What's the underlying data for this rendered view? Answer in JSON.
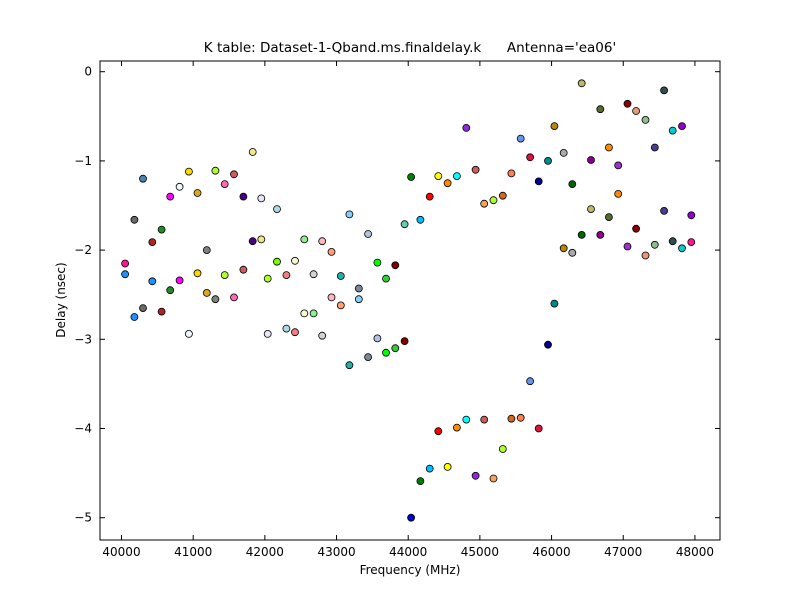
{
  "figure": {
    "background": "#ffffff"
  },
  "chart_data": {
    "type": "scatter",
    "title": "K table: Dataset-1-Qband.ms.finaldelay.k      Antenna='ea06'",
    "xlabel": "Frequency (MHz)",
    "ylabel": "Delay (nsec)",
    "xlim": [
      39700,
      48350
    ],
    "ylim": [
      -5.25,
      0.12
    ],
    "xticks": [
      40000,
      41000,
      42000,
      43000,
      44000,
      45000,
      46000,
      47000,
      48000
    ],
    "yticks": [
      0,
      -1,
      -2,
      -3,
      -4,
      -5
    ],
    "xtick_labels": [
      "40000",
      "41000",
      "42000",
      "43000",
      "44000",
      "45000",
      "46000",
      "47000",
      "48000"
    ],
    "ytick_labels": [
      "0",
      "−1",
      "−2",
      "−3",
      "−4",
      "−5"
    ],
    "grid": false,
    "legend": false,
    "marker": "circle",
    "points": [
      {
        "x": 40050,
        "y": -2.15,
        "color": "#ff1493"
      },
      {
        "x": 40050,
        "y": -2.27,
        "color": "#1e90ff"
      },
      {
        "x": 40180,
        "y": -1.66,
        "color": "#696969"
      },
      {
        "x": 40180,
        "y": -2.75,
        "color": "#1e90ff"
      },
      {
        "x": 40300,
        "y": -1.2,
        "color": "#4682b4"
      },
      {
        "x": 40300,
        "y": -2.65,
        "color": "#696969"
      },
      {
        "x": 40430,
        "y": -1.91,
        "color": "#b22222"
      },
      {
        "x": 40430,
        "y": -2.35,
        "color": "#1e90ff"
      },
      {
        "x": 40560,
        "y": -1.77,
        "color": "#228b22"
      },
      {
        "x": 40560,
        "y": -2.69,
        "color": "#b22222"
      },
      {
        "x": 40680,
        "y": -1.4,
        "color": "#ff00ff"
      },
      {
        "x": 40680,
        "y": -2.45,
        "color": "#228b22"
      },
      {
        "x": 40810,
        "y": -1.29,
        "color": "#f0f8ff"
      },
      {
        "x": 40810,
        "y": -2.34,
        "color": "#ff00ff"
      },
      {
        "x": 40940,
        "y": -1.12,
        "color": "#ffd700"
      },
      {
        "x": 40940,
        "y": -2.94,
        "color": "#f0f8ff"
      },
      {
        "x": 41060,
        "y": -1.36,
        "color": "#daa520"
      },
      {
        "x": 41060,
        "y": -2.26,
        "color": "#ffd700"
      },
      {
        "x": 41190,
        "y": -2.0,
        "color": "#808080"
      },
      {
        "x": 41190,
        "y": -2.48,
        "color": "#daa520"
      },
      {
        "x": 41310,
        "y": -1.11,
        "color": "#adff2f"
      },
      {
        "x": 41310,
        "y": -2.55,
        "color": "#808080"
      },
      {
        "x": 41440,
        "y": -1.26,
        "color": "#ff69b4"
      },
      {
        "x": 41440,
        "y": -2.28,
        "color": "#adff2f"
      },
      {
        "x": 41570,
        "y": -1.15,
        "color": "#cd5c5c"
      },
      {
        "x": 41570,
        "y": -2.53,
        "color": "#ff69b4"
      },
      {
        "x": 41700,
        "y": -1.4,
        "color": "#4b0082"
      },
      {
        "x": 41700,
        "y": -2.22,
        "color": "#cd5c5c"
      },
      {
        "x": 41830,
        "y": -0.9,
        "color": "#f0e68c"
      },
      {
        "x": 41830,
        "y": -1.9,
        "color": "#4b0082"
      },
      {
        "x": 41950,
        "y": -1.42,
        "color": "#e6e6fa"
      },
      {
        "x": 41950,
        "y": -1.88,
        "color": "#f0e68c"
      },
      {
        "x": 42040,
        "y": -2.32,
        "color": "#adff2f"
      },
      {
        "x": 42040,
        "y": -2.94,
        "color": "#e6e6fa"
      },
      {
        "x": 42170,
        "y": -1.54,
        "color": "#add8e6"
      },
      {
        "x": 42170,
        "y": -2.13,
        "color": "#7cfc00"
      },
      {
        "x": 42300,
        "y": -2.28,
        "color": "#f08080"
      },
      {
        "x": 42300,
        "y": -2.88,
        "color": "#add8e6"
      },
      {
        "x": 42420,
        "y": -2.12,
        "color": "#fafad2"
      },
      {
        "x": 42420,
        "y": -2.92,
        "color": "#f08080"
      },
      {
        "x": 42550,
        "y": -1.88,
        "color": "#90ee90"
      },
      {
        "x": 42550,
        "y": -2.71,
        "color": "#fafad2"
      },
      {
        "x": 42680,
        "y": -2.27,
        "color": "#d3d3d3"
      },
      {
        "x": 42680,
        "y": -2.71,
        "color": "#90ee90"
      },
      {
        "x": 42800,
        "y": -1.9,
        "color": "#ffb6c1"
      },
      {
        "x": 42800,
        "y": -2.96,
        "color": "#d3d3d3"
      },
      {
        "x": 42930,
        "y": -2.02,
        "color": "#ffa07a"
      },
      {
        "x": 42930,
        "y": -2.53,
        "color": "#ffb6c1"
      },
      {
        "x": 43060,
        "y": -2.29,
        "color": "#20b2aa"
      },
      {
        "x": 43060,
        "y": -2.62,
        "color": "#ffa07a"
      },
      {
        "x": 43180,
        "y": -1.6,
        "color": "#87cefa"
      },
      {
        "x": 43180,
        "y": -3.29,
        "color": "#20b2aa"
      },
      {
        "x": 43310,
        "y": -2.43,
        "color": "#778899"
      },
      {
        "x": 43310,
        "y": -2.55,
        "color": "#87cefa"
      },
      {
        "x": 43440,
        "y": -1.82,
        "color": "#b0c4de"
      },
      {
        "x": 43440,
        "y": -3.2,
        "color": "#778899"
      },
      {
        "x": 43570,
        "y": -2.14,
        "color": "#00ff00"
      },
      {
        "x": 43570,
        "y": -2.99,
        "color": "#b0c4de"
      },
      {
        "x": 43690,
        "y": -2.32,
        "color": "#32cd32"
      },
      {
        "x": 43690,
        "y": -3.15,
        "color": "#00ff00"
      },
      {
        "x": 43820,
        "y": -2.17,
        "color": "#800000"
      },
      {
        "x": 43820,
        "y": -3.1,
        "color": "#32cd32"
      },
      {
        "x": 43950,
        "y": -1.71,
        "color": "#66cdaa"
      },
      {
        "x": 43950,
        "y": -3.02,
        "color": "#800000"
      },
      {
        "x": 44040,
        "y": -1.18,
        "color": "#008000"
      },
      {
        "x": 44040,
        "y": -5.0,
        "color": "#0000cd"
      },
      {
        "x": 44170,
        "y": -1.66,
        "color": "#00bfff"
      },
      {
        "x": 44170,
        "y": -4.59,
        "color": "#008000"
      },
      {
        "x": 44300,
        "y": -1.4,
        "color": "#ff0000"
      },
      {
        "x": 44300,
        "y": -4.45,
        "color": "#00bfff"
      },
      {
        "x": 44420,
        "y": -1.17,
        "color": "#ffff00"
      },
      {
        "x": 44420,
        "y": -4.03,
        "color": "#ff0000"
      },
      {
        "x": 44550,
        "y": -1.25,
        "color": "#ff8c00"
      },
      {
        "x": 44550,
        "y": -4.43,
        "color": "#ffff00"
      },
      {
        "x": 44680,
        "y": -1.17,
        "color": "#00ffff"
      },
      {
        "x": 44680,
        "y": -3.99,
        "color": "#ff8c00"
      },
      {
        "x": 44810,
        "y": -0.63,
        "color": "#8a2be2"
      },
      {
        "x": 44810,
        "y": -3.9,
        "color": "#00ffff"
      },
      {
        "x": 44940,
        "y": -1.1,
        "color": "#cd5c5c"
      },
      {
        "x": 44940,
        "y": -4.53,
        "color": "#8a2be2"
      },
      {
        "x": 45060,
        "y": -1.48,
        "color": "#f4a460"
      },
      {
        "x": 45060,
        "y": -3.9,
        "color": "#cd5c5c"
      },
      {
        "x": 45190,
        "y": -1.44,
        "color": "#adff2f"
      },
      {
        "x": 45190,
        "y": -4.56,
        "color": "#f4a460"
      },
      {
        "x": 45320,
        "y": -1.39,
        "color": "#d2691e"
      },
      {
        "x": 45320,
        "y": -4.23,
        "color": "#adff2f"
      },
      {
        "x": 45440,
        "y": -1.14,
        "color": "#ff7f50"
      },
      {
        "x": 45440,
        "y": -3.89,
        "color": "#d2691e"
      },
      {
        "x": 45570,
        "y": -0.75,
        "color": "#6495ed"
      },
      {
        "x": 45570,
        "y": -3.88,
        "color": "#ff7f50"
      },
      {
        "x": 45700,
        "y": -0.96,
        "color": "#dc143c"
      },
      {
        "x": 45700,
        "y": -3.47,
        "color": "#6495ed"
      },
      {
        "x": 45820,
        "y": -1.23,
        "color": "#00008b"
      },
      {
        "x": 45820,
        "y": -4.0,
        "color": "#dc143c"
      },
      {
        "x": 45950,
        "y": -1.0,
        "color": "#008b8b"
      },
      {
        "x": 45950,
        "y": -3.06,
        "color": "#00008b"
      },
      {
        "x": 46040,
        "y": -0.61,
        "color": "#b8860b"
      },
      {
        "x": 46040,
        "y": -2.6,
        "color": "#008b8b"
      },
      {
        "x": 46170,
        "y": -0.91,
        "color": "#a9a9a9"
      },
      {
        "x": 46170,
        "y": -1.98,
        "color": "#b8860b"
      },
      {
        "x": 46290,
        "y": -1.26,
        "color": "#006400"
      },
      {
        "x": 46290,
        "y": -2.03,
        "color": "#a9a9a9"
      },
      {
        "x": 46420,
        "y": -0.13,
        "color": "#bdb76b"
      },
      {
        "x": 46420,
        "y": -1.83,
        "color": "#006400"
      },
      {
        "x": 46550,
        "y": -0.99,
        "color": "#8b008b"
      },
      {
        "x": 46550,
        "y": -1.54,
        "color": "#bdb76b"
      },
      {
        "x": 46680,
        "y": -0.42,
        "color": "#556b2f"
      },
      {
        "x": 46680,
        "y": -1.83,
        "color": "#8b008b"
      },
      {
        "x": 46800,
        "y": -0.85,
        "color": "#ff8c00"
      },
      {
        "x": 46800,
        "y": -1.63,
        "color": "#556b2f"
      },
      {
        "x": 46930,
        "y": -1.05,
        "color": "#9932cc"
      },
      {
        "x": 46930,
        "y": -1.37,
        "color": "#ff8c00"
      },
      {
        "x": 47060,
        "y": -0.36,
        "color": "#8b0000"
      },
      {
        "x": 47060,
        "y": -1.96,
        "color": "#9932cc"
      },
      {
        "x": 47180,
        "y": -0.44,
        "color": "#e9967a"
      },
      {
        "x": 47180,
        "y": -1.76,
        "color": "#8b0000"
      },
      {
        "x": 47310,
        "y": -0.54,
        "color": "#8fbc8f"
      },
      {
        "x": 47310,
        "y": -2.06,
        "color": "#e9967a"
      },
      {
        "x": 47440,
        "y": -0.85,
        "color": "#483d8b"
      },
      {
        "x": 47440,
        "y": -1.94,
        "color": "#8fbc8f"
      },
      {
        "x": 47570,
        "y": -0.21,
        "color": "#2f4f4f"
      },
      {
        "x": 47570,
        "y": -1.56,
        "color": "#483d8b"
      },
      {
        "x": 47690,
        "y": -0.66,
        "color": "#00ced1"
      },
      {
        "x": 47690,
        "y": -1.9,
        "color": "#2f4f4f"
      },
      {
        "x": 47820,
        "y": -0.61,
        "color": "#9400d3"
      },
      {
        "x": 47820,
        "y": -1.98,
        "color": "#00ced1"
      },
      {
        "x": 47950,
        "y": -1.61,
        "color": "#9400d3"
      },
      {
        "x": 47950,
        "y": -1.91,
        "color": "#ff1493"
      }
    ]
  }
}
